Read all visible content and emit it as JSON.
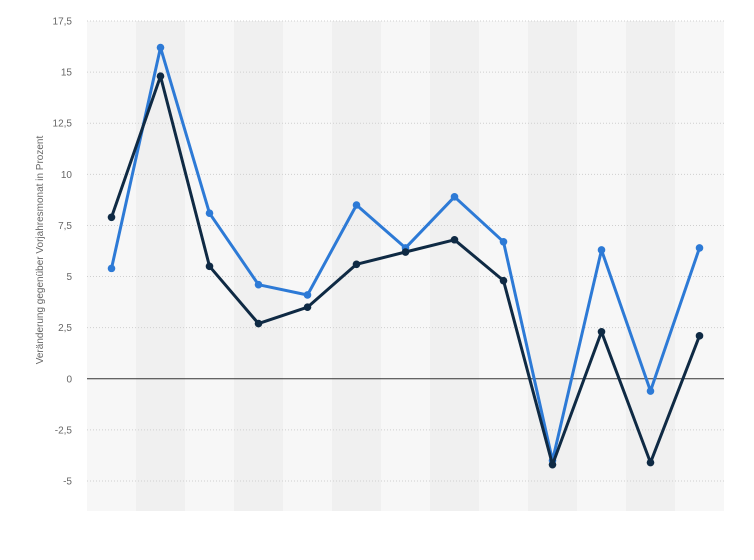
{
  "chart_data": {
    "type": "line",
    "ylabel": "Veränderung gegenüber Vorjahresmonat in Prozent",
    "ylim": [
      -5,
      17.5
    ],
    "yticks": [
      17.5,
      15,
      12.5,
      10,
      7.5,
      5,
      2.5,
      0,
      -2.5,
      -5
    ],
    "ytick_labels": [
      "17,5",
      "15",
      "12,5",
      "10",
      "7,5",
      "5",
      "2,5",
      "0",
      "-2,5",
      "-5"
    ],
    "grid": true,
    "legend": "none",
    "n_points": 13,
    "series": [
      {
        "color": "#2d7ad6",
        "values": [
          5.4,
          16.2,
          8.1,
          4.6,
          4.1,
          8.5,
          6.4,
          8.9,
          6.7,
          -4.0,
          6.3,
          -0.6,
          6.4
        ]
      },
      {
        "color": "#0f2a44",
        "values": [
          7.9,
          14.8,
          5.5,
          2.7,
          3.5,
          5.6,
          6.2,
          6.8,
          4.8,
          -4.2,
          2.3,
          -4.1,
          2.1
        ]
      }
    ]
  }
}
